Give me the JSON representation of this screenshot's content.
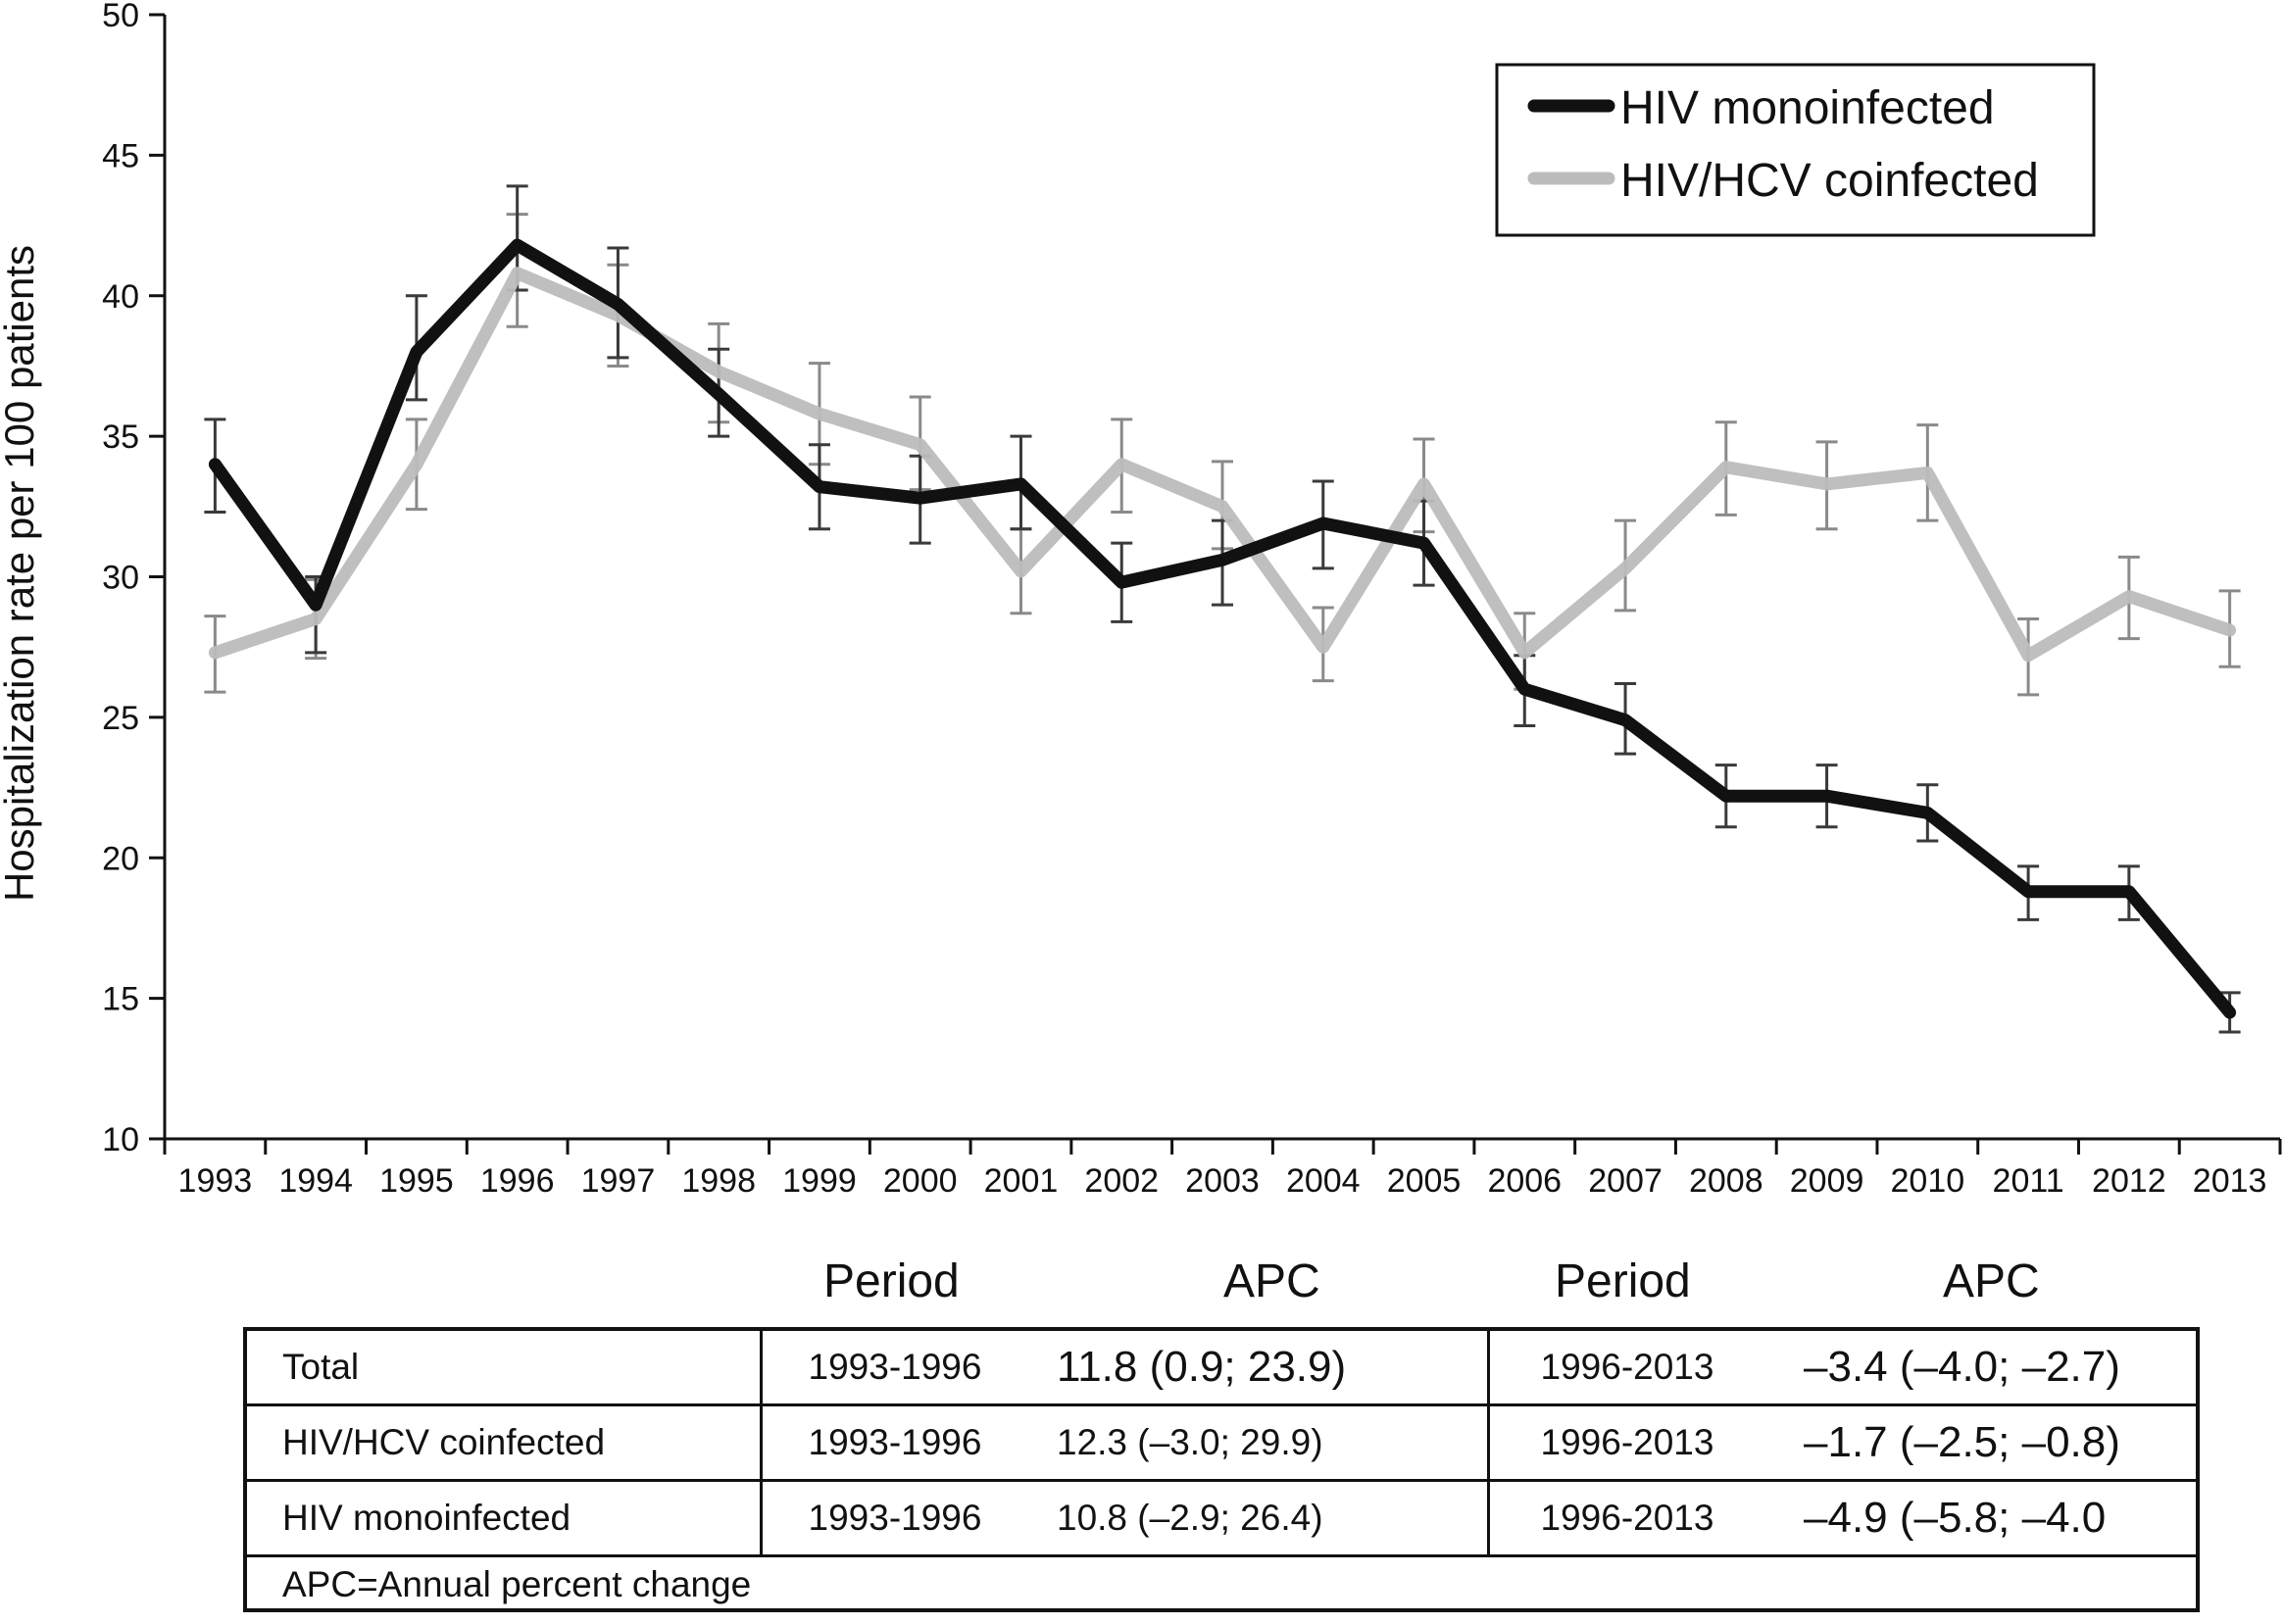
{
  "chart_data": {
    "type": "line",
    "title": "",
    "xlabel": "",
    "ylabel": "Hospitalization rate per 100 patients",
    "ylim": [
      10,
      50
    ],
    "yticks": [
      10,
      15,
      20,
      25,
      30,
      35,
      40,
      45,
      50
    ],
    "x": [
      "1993",
      "1994",
      "1995",
      "1996",
      "1997",
      "1998",
      "1999",
      "2000",
      "2001",
      "2002",
      "2003",
      "2004",
      "2005",
      "2006",
      "2007",
      "2008",
      "2009",
      "2010",
      "2011",
      "2012",
      "2013"
    ],
    "legend_position": "top-right",
    "grid": false,
    "series": [
      {
        "name": "HIV monoinfected",
        "color": "#111111",
        "values": [
          34.0,
          29.0,
          38.0,
          41.8,
          39.7,
          36.5,
          33.2,
          32.8,
          33.3,
          29.8,
          30.6,
          31.9,
          31.2,
          26.0,
          24.9,
          22.2,
          22.2,
          21.6,
          18.8,
          18.8,
          14.5
        ],
        "lower": [
          32.3,
          27.3,
          36.3,
          40.2,
          37.8,
          35.0,
          31.7,
          31.2,
          31.7,
          28.4,
          29.0,
          30.3,
          29.7,
          24.7,
          23.7,
          21.1,
          21.1,
          20.6,
          17.8,
          17.8,
          13.8
        ],
        "upper": [
          35.6,
          30.0,
          40.0,
          43.9,
          41.7,
          38.1,
          34.7,
          34.3,
          35.0,
          31.2,
          32.0,
          33.4,
          32.7,
          27.2,
          26.2,
          23.3,
          23.3,
          22.6,
          19.7,
          19.7,
          15.2
        ]
      },
      {
        "name": "HIV/HCV coinfected",
        "color": "#bcbcbc",
        "values": [
          27.3,
          28.5,
          34.0,
          40.8,
          39.3,
          37.3,
          35.8,
          34.7,
          30.2,
          34.0,
          32.5,
          27.5,
          33.3,
          27.3,
          30.3,
          33.9,
          33.3,
          33.7,
          27.2,
          29.3,
          28.1
        ],
        "lower": [
          25.9,
          27.1,
          32.4,
          38.9,
          37.5,
          35.5,
          34.0,
          33.1,
          28.7,
          32.3,
          31.0,
          26.3,
          31.6,
          26.0,
          28.8,
          32.2,
          31.7,
          32.0,
          25.8,
          27.8,
          26.8
        ],
        "upper": [
          28.6,
          29.9,
          35.6,
          42.9,
          41.1,
          39.0,
          37.6,
          36.4,
          31.7,
          35.6,
          34.1,
          28.9,
          34.9,
          28.7,
          32.0,
          35.5,
          34.8,
          35.4,
          28.5,
          30.7,
          29.5
        ]
      }
    ]
  },
  "table": {
    "headers": [
      "Period",
      "APC",
      "Period",
      "APC"
    ],
    "rows": [
      {
        "label": "Total",
        "period1": "1993-1996",
        "apc1": "11.8 (0.9; 23.9)",
        "period2": "1996-2013",
        "apc2": "–3.4  (–4.0; –2.7)"
      },
      {
        "label": "HIV/HCV coinfected",
        "period1": "1993-1996",
        "apc1": "12.3 (–3.0; 29.9)",
        "period2": "1996-2013",
        "apc2": "–1.7 (–2.5; –0.8)"
      },
      {
        "label": "HIV monoinfected",
        "period1": "1993-1996",
        "apc1": "10.8 (–2.9; 26.4)",
        "period2": "1996-2013",
        "apc2": "–4.9 (–5.8; –4.0"
      }
    ],
    "note": "APC=Annual percent change"
  }
}
